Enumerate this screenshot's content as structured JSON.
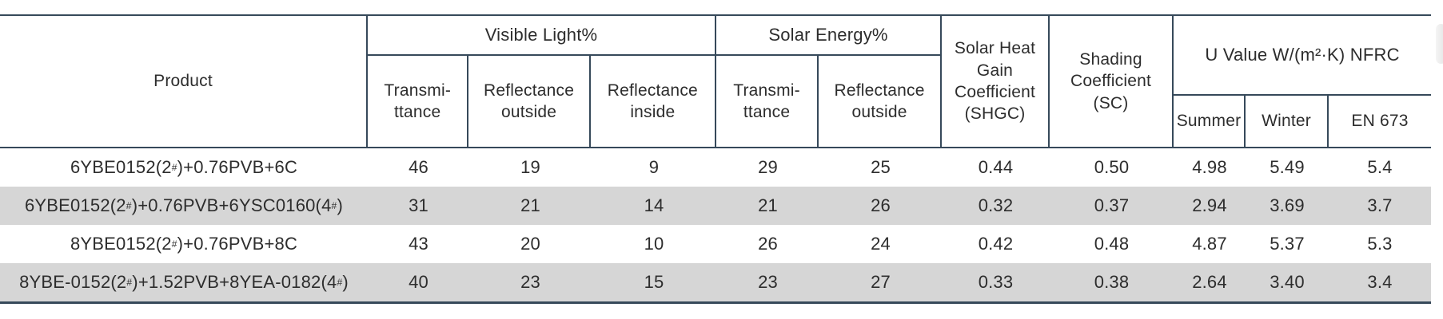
{
  "table": {
    "header": {
      "product": "Product",
      "visible_light": "Visible Light%",
      "solar_energy": "Solar Energy%",
      "shgc": "Solar Heat\nGain\nCoefficient\n(SHGC)",
      "sc": "Shading\nCoefficient\n(SC)",
      "u_value": "U Value\nW/(m²·K)\nNFRC",
      "vl_sub": [
        "Transmi-\nttance",
        "Reflectance\noutside",
        "Reflectance\ninside"
      ],
      "se_sub": [
        "Transmi-\nttance",
        "Reflectance\noutside"
      ],
      "u_sub": [
        "Summer",
        "Winter",
        "EN 673"
      ]
    },
    "rows": [
      {
        "product": "6YBE0152(2#)+0.76PVB+6C",
        "values": [
          "46",
          "19",
          "9",
          "29",
          "25",
          "0.44",
          "0.50",
          "4.98",
          "5.49",
          "5.4"
        ],
        "shaded": false
      },
      {
        "product": "6YBE0152(2#)+0.76PVB+6YSC0160(4#)",
        "values": [
          "31",
          "21",
          "14",
          "21",
          "26",
          "0.32",
          "0.37",
          "2.94",
          "3.69",
          "3.7"
        ],
        "shaded": true
      },
      {
        "product": "8YBE0152(2#)+0.76PVB+8C",
        "values": [
          "43",
          "20",
          "10",
          "26",
          "24",
          "0.42",
          "0.48",
          "4.87",
          "5.37",
          "5.3"
        ],
        "shaded": false
      },
      {
        "product": "8YBE-0152(2#)+1.52PVB+8YEA-0182(4#)",
        "values": [
          "40",
          "23",
          "15",
          "23",
          "27",
          "0.33",
          "0.38",
          "2.64",
          "3.40",
          "3.4"
        ],
        "shaded": true
      }
    ],
    "colors": {
      "border": "#36495a",
      "shaded_row": "#d6d6d6",
      "text": "#2d2d2d"
    }
  }
}
